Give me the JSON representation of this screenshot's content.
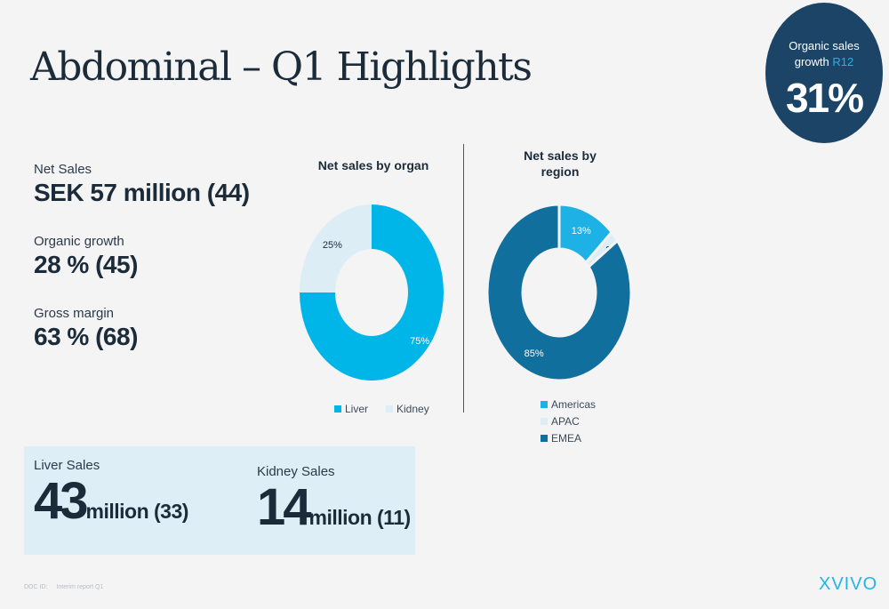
{
  "title": "Abdominal – Q1 Highlights",
  "badge": {
    "label_line1": "Organic sales",
    "label_line2": "growth",
    "label_accent": "R12",
    "value": "31%"
  },
  "kpis": [
    {
      "label": "Net Sales",
      "value": "SEK 57 million (44)"
    },
    {
      "label": "Organic growth",
      "value": "28 % (45)"
    },
    {
      "label": "Gross margin",
      "value": "63 % (68)"
    }
  ],
  "chart_data": [
    {
      "type": "pie",
      "variant": "donut",
      "title": "Net sales by organ",
      "categories": [
        "Liver",
        "Kidney"
      ],
      "values": [
        75,
        25
      ],
      "labels": [
        "75%",
        "25%"
      ],
      "colors": [
        "#00b6e8",
        "#dcedf6"
      ],
      "legend_position": "bottom"
    },
    {
      "type": "pie",
      "variant": "donut",
      "title_line1": "Net sales by",
      "title_line2": "region",
      "categories": [
        "Americas",
        "APAC",
        "EMEA"
      ],
      "values": [
        13,
        2,
        85
      ],
      "labels": [
        "13%",
        "2%",
        "85%"
      ],
      "colors": [
        "#1db1e6",
        "#dcedf6",
        "#116f9d"
      ],
      "legend_position": "bottom"
    }
  ],
  "sales": {
    "liver": {
      "label": "Liver Sales",
      "big": "43",
      "small": "million (33)"
    },
    "kidney": {
      "label": "Kidney Sales",
      "big": "14",
      "small": "million (11)"
    }
  },
  "footer": {
    "doc_id": "DOC ID:",
    "doc_name": "Interim report Q1"
  },
  "logo": "XVIVO"
}
